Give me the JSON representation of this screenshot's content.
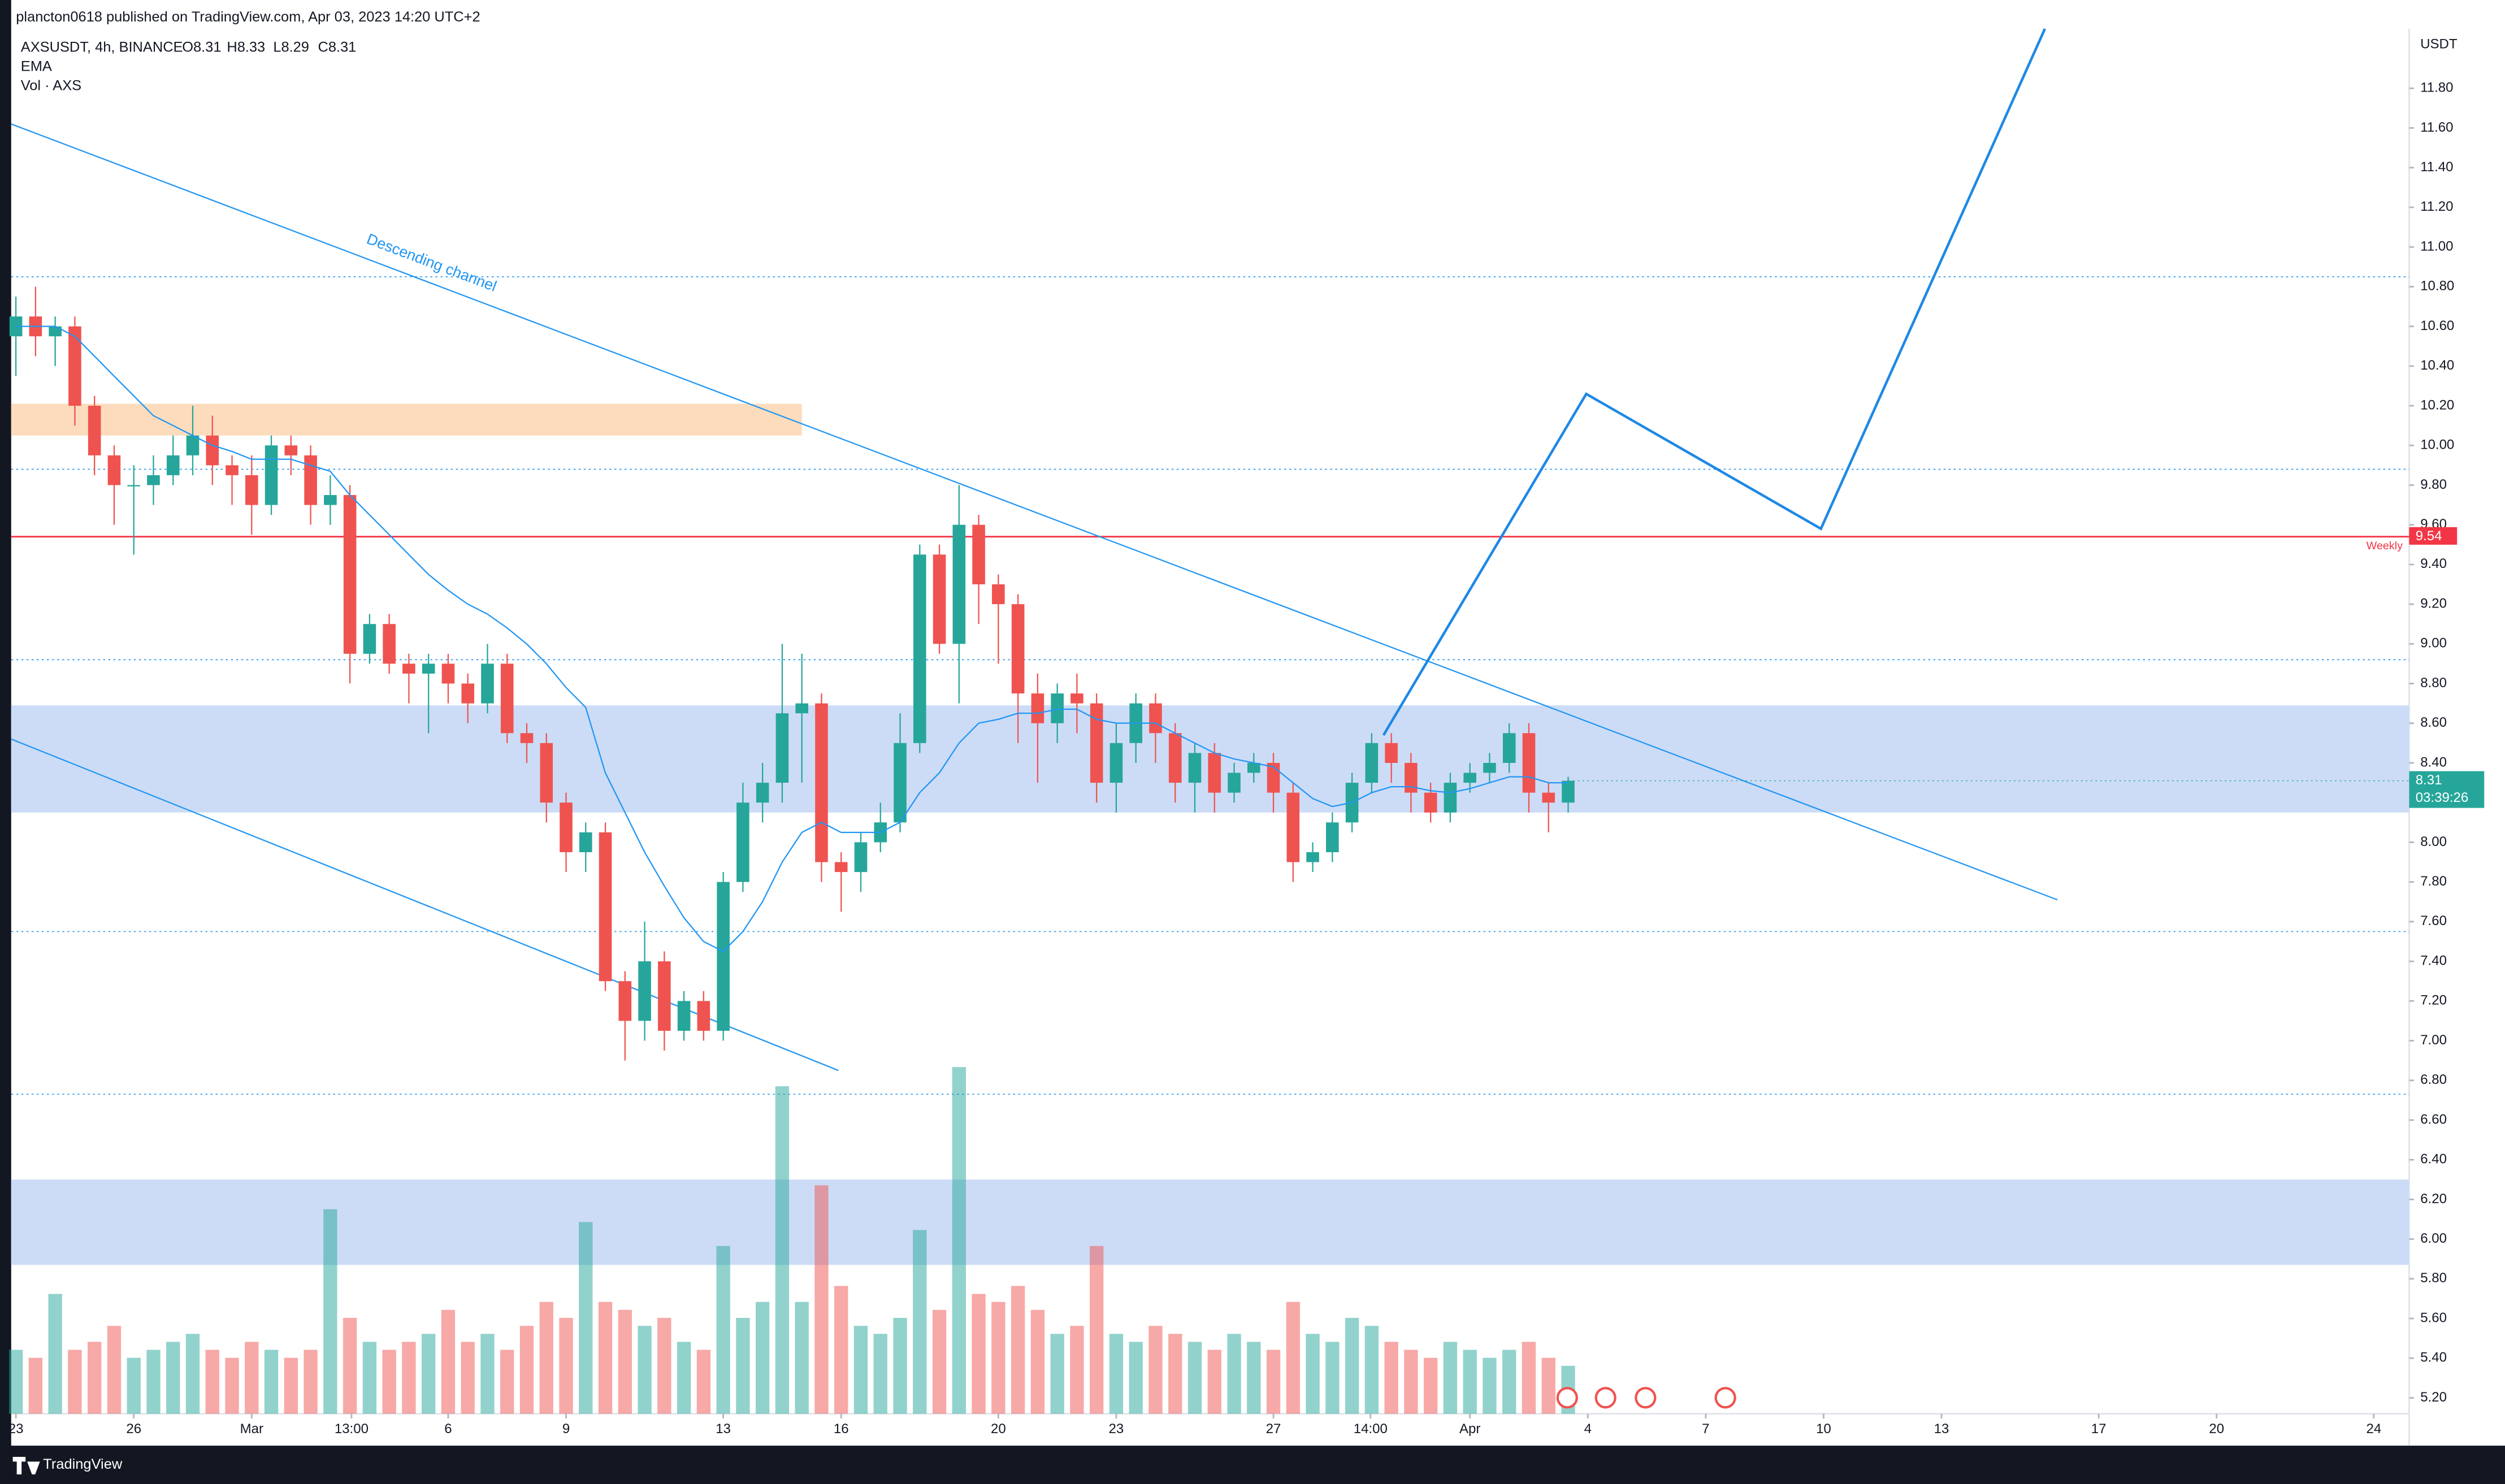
{
  "header": {
    "publisher": "plancton0618 published on TradingView.com, Apr 03, 2023 14:20 UTC+2",
    "symbol": "AXSUSDT, 4h, BINANCE",
    "ohlc": [
      "O8.31",
      "H8.33",
      "L8.29",
      "C8.31"
    ]
  },
  "footer": {
    "brand": "TradingView"
  },
  "chart_data": {
    "type": "candlestick",
    "currency": "USDT",
    "up_color": "#26a69a",
    "down_color": "#ef5350",
    "xlim": [
      -0.12,
      60.9
    ],
    "ylim": [
      5.12,
      12.1
    ],
    "xticks": [
      {
        "value": 0,
        "label": "23"
      },
      {
        "value": 3,
        "label": "26"
      },
      {
        "value": 6,
        "label": "Mar"
      },
      {
        "value": 8.54,
        "label": "13:00"
      },
      {
        "value": 11,
        "label": "6"
      },
      {
        "value": 14,
        "label": "9"
      },
      {
        "value": 18,
        "label": "13"
      },
      {
        "value": 21,
        "label": "16"
      },
      {
        "value": 25,
        "label": "20"
      },
      {
        "value": 28,
        "label": "23"
      },
      {
        "value": 32,
        "label": "27"
      },
      {
        "value": 34.47,
        "label": "14:00"
      },
      {
        "value": 37,
        "label": "Apr"
      },
      {
        "value": 40,
        "label": "4"
      },
      {
        "value": 43,
        "label": "7"
      },
      {
        "value": 46,
        "label": "10"
      },
      {
        "value": 49,
        "label": "13"
      },
      {
        "value": 53,
        "label": "17"
      },
      {
        "value": 56,
        "label": "20"
      },
      {
        "value": 60,
        "label": "24"
      }
    ],
    "yticks": [
      {
        "value": 5.2,
        "label": "5.20"
      },
      {
        "value": 5.4,
        "label": "5.40"
      },
      {
        "value": 5.6,
        "label": "5.60"
      },
      {
        "value": 5.8,
        "label": "5.80"
      },
      {
        "value": 6,
        "label": "6.00"
      },
      {
        "value": 6.2,
        "label": "6.20"
      },
      {
        "value": 6.4,
        "label": "6.40"
      },
      {
        "value": 6.6,
        "label": "6.60"
      },
      {
        "value": 6.8,
        "label": "6.80"
      },
      {
        "value": 7,
        "label": "7.00"
      },
      {
        "value": 7.2,
        "label": "7.20"
      },
      {
        "value": 7.4,
        "label": "7.40"
      },
      {
        "value": 7.6,
        "label": "7.60"
      },
      {
        "value": 7.8,
        "label": "7.80"
      },
      {
        "value": 8,
        "label": "8.00"
      },
      {
        "value": 8.4,
        "label": "8.40"
      },
      {
        "value": 8.6,
        "label": "8.60"
      },
      {
        "value": 8.8,
        "label": "8.80"
      },
      {
        "value": 9,
        "label": "9.00"
      },
      {
        "value": 9.2,
        "label": "9.20"
      },
      {
        "value": 9.4,
        "label": "9.40"
      },
      {
        "value": 9.6,
        "label": "9.60"
      },
      {
        "value": 9.8,
        "label": "9.80"
      },
      {
        "value": 10,
        "label": "10.00"
      },
      {
        "value": 10.2,
        "label": "10.20"
      },
      {
        "value": 10.4,
        "label": "10.40"
      },
      {
        "value": 10.6,
        "label": "10.60"
      },
      {
        "value": 10.8,
        "label": "10.80"
      },
      {
        "value": 11,
        "label": "11.00"
      },
      {
        "value": 11.2,
        "label": "11.20"
      },
      {
        "value": 11.4,
        "label": "11.40"
      },
      {
        "value": 11.6,
        "label": "11.60"
      },
      {
        "value": 11.8,
        "label": "11.80"
      }
    ],
    "x": [
      0,
      0.5,
      1,
      1.5,
      2,
      2.5,
      3,
      3.5,
      4,
      4.5,
      5,
      5.5,
      6,
      6.5,
      7,
      7.5,
      8,
      8.5,
      9,
      9.5,
      10,
      10.5,
      11,
      11.5,
      12,
      12.5,
      13,
      13.5,
      14,
      14.5,
      15,
      15.5,
      16,
      16.5,
      17,
      17.5,
      18,
      18.5,
      19,
      19.5,
      20,
      20.5,
      21,
      21.5,
      22,
      22.5,
      23,
      23.5,
      24,
      24.5,
      25,
      25.5,
      26,
      26.5,
      27,
      27.5,
      28,
      28.5,
      29,
      29.5,
      30,
      30.5,
      31,
      31.5,
      32,
      32.5,
      33,
      33.5,
      34,
      34.5,
      35,
      35.5,
      36,
      36.5,
      37,
      37.5,
      38,
      38.5,
      39,
      39.5
    ],
    "open": [
      10.55,
      10.65,
      10.55,
      10.6,
      10.2,
      9.95,
      9.8,
      9.8,
      9.85,
      9.95,
      10.05,
      9.9,
      9.85,
      9.7,
      10.0,
      9.95,
      9.7,
      9.75,
      8.95,
      9.1,
      8.9,
      8.85,
      8.9,
      8.8,
      8.7,
      8.9,
      8.55,
      8.5,
      8.2,
      7.95,
      8.05,
      7.3,
      7.1,
      7.4,
      7.05,
      7.2,
      7.05,
      7.8,
      8.2,
      8.3,
      8.65,
      8.7,
      7.9,
      7.85,
      8.0,
      8.1,
      8.5,
      9.45,
      9.0,
      9.6,
      9.3,
      9.2,
      8.75,
      8.6,
      8.75,
      8.7,
      8.3,
      8.5,
      8.7,
      8.55,
      8.3,
      8.45,
      8.25,
      8.35,
      8.4,
      8.25,
      7.9,
      7.95,
      8.1,
      8.3,
      8.5,
      8.4,
      8.25,
      8.15,
      8.3,
      8.35,
      8.4,
      8.55,
      8.25,
      8.2
    ],
    "high": [
      10.75,
      10.8,
      10.65,
      10.65,
      10.25,
      10.0,
      9.9,
      9.95,
      10.05,
      10.2,
      10.15,
      9.95,
      9.95,
      10.05,
      10.05,
      10.0,
      9.85,
      9.8,
      9.15,
      9.15,
      8.95,
      8.95,
      8.95,
      8.85,
      9.0,
      8.95,
      8.6,
      8.55,
      8.25,
      8.1,
      8.1,
      7.35,
      7.6,
      7.45,
      7.25,
      7.25,
      7.85,
      8.3,
      8.4,
      9.0,
      8.95,
      8.75,
      7.95,
      8.05,
      8.2,
      8.65,
      9.5,
      9.5,
      9.8,
      9.65,
      9.35,
      9.25,
      8.85,
      8.8,
      8.85,
      8.75,
      8.6,
      8.75,
      8.75,
      8.6,
      8.5,
      8.5,
      8.4,
      8.45,
      8.45,
      8.3,
      8.0,
      8.15,
      8.35,
      8.55,
      8.55,
      8.45,
      8.3,
      8.35,
      8.4,
      8.45,
      8.6,
      8.6,
      8.3,
      8.33
    ],
    "low": [
      10.35,
      10.45,
      10.4,
      10.1,
      9.85,
      9.6,
      9.45,
      9.7,
      9.8,
      9.85,
      9.8,
      9.7,
      9.55,
      9.65,
      9.85,
      9.6,
      9.6,
      8.8,
      8.9,
      8.85,
      8.7,
      8.55,
      8.7,
      8.6,
      8.65,
      8.5,
      8.4,
      8.1,
      7.85,
      7.85,
      7.25,
      6.9,
      7.0,
      6.95,
      7.0,
      7.0,
      7.0,
      7.75,
      8.1,
      8.2,
      8.3,
      7.8,
      7.65,
      7.75,
      7.95,
      8.05,
      8.45,
      8.95,
      8.7,
      9.1,
      8.9,
      8.5,
      8.3,
      8.5,
      8.55,
      8.2,
      8.15,
      8.4,
      8.4,
      8.2,
      8.15,
      8.15,
      8.2,
      8.3,
      8.15,
      7.8,
      7.85,
      7.9,
      8.05,
      8.25,
      8.3,
      8.15,
      8.1,
      8.1,
      8.25,
      8.3,
      8.35,
      8.15,
      8.05,
      8.15
    ],
    "close": [
      10.65,
      10.55,
      10.6,
      10.2,
      9.95,
      9.8,
      9.8,
      9.85,
      9.95,
      10.05,
      9.9,
      9.85,
      9.7,
      10.0,
      9.95,
      9.7,
      9.75,
      8.95,
      9.1,
      8.9,
      8.85,
      8.9,
      8.8,
      8.7,
      8.9,
      8.55,
      8.5,
      8.2,
      7.95,
      8.05,
      7.3,
      7.1,
      7.4,
      7.05,
      7.2,
      7.05,
      7.8,
      8.2,
      8.3,
      8.65,
      8.7,
      7.9,
      7.85,
      8.0,
      8.1,
      8.5,
      9.45,
      9.0,
      9.6,
      9.3,
      9.2,
      8.75,
      8.6,
      8.75,
      8.7,
      8.3,
      8.5,
      8.7,
      8.55,
      8.3,
      8.45,
      8.25,
      8.35,
      8.4,
      8.25,
      7.9,
      7.95,
      8.1,
      8.3,
      8.5,
      8.4,
      8.25,
      8.15,
      8.3,
      8.35,
      8.4,
      8.55,
      8.25,
      8.2,
      8.31
    ],
    "ema": {
      "name": "EMA",
      "color": "#2196f3",
      "values": [
        10.6,
        10.6,
        10.6,
        10.55,
        10.45,
        10.35,
        10.25,
        10.15,
        10.1,
        10.05,
        10.0,
        9.97,
        9.93,
        9.93,
        9.93,
        9.9,
        9.87,
        9.75,
        9.65,
        9.55,
        9.45,
        9.35,
        9.27,
        9.2,
        9.15,
        9.08,
        9.0,
        8.9,
        8.78,
        8.68,
        8.35,
        8.15,
        7.95,
        7.78,
        7.62,
        7.5,
        7.45,
        7.55,
        7.7,
        7.9,
        8.05,
        8.1,
        8.05,
        8.05,
        8.05,
        8.1,
        8.25,
        8.35,
        8.5,
        8.6,
        8.62,
        8.65,
        8.65,
        8.67,
        8.67,
        8.62,
        8.6,
        8.6,
        8.6,
        8.55,
        8.5,
        8.45,
        8.42,
        8.4,
        8.38,
        8.3,
        8.22,
        8.18,
        8.2,
        8.25,
        8.28,
        8.28,
        8.26,
        8.25,
        8.27,
        8.3,
        8.33,
        8.33,
        8.3,
        8.3
      ]
    },
    "volume": {
      "name": "Vol · AXS",
      "values": [
        40,
        35,
        75,
        40,
        45,
        55,
        35,
        40,
        45,
        50,
        40,
        35,
        45,
        40,
        35,
        40,
        128,
        60,
        45,
        40,
        45,
        50,
        65,
        45,
        50,
        40,
        55,
        70,
        60,
        120,
        70,
        65,
        55,
        60,
        45,
        40,
        105,
        60,
        70,
        205,
        70,
        143,
        80,
        55,
        50,
        60,
        115,
        65,
        217,
        75,
        70,
        80,
        65,
        50,
        55,
        105,
        50,
        45,
        55,
        50,
        45,
        40,
        50,
        45,
        40,
        70,
        50,
        45,
        60,
        55,
        45,
        40,
        35,
        45,
        40,
        35,
        40,
        45,
        35,
        30
      ]
    },
    "last_price": 8.31,
    "countdown": "03:39:26",
    "levels": [
      {
        "name": "Weekly",
        "value": 9.54,
        "color": "#f23645"
      }
    ],
    "dotted_levels": [
      10.85,
      9.88,
      8.92,
      7.55,
      6.73
    ],
    "zones": [
      {
        "x": [
          -0.12,
          20.0
        ],
        "y": [
          10.05,
          10.21
        ],
        "color": "#fcdcbd"
      },
      {
        "y": [
          8.15,
          8.69
        ],
        "color": "#ccdcf7"
      },
      {
        "y": [
          5.87,
          6.3
        ],
        "color": "#ccdcf7"
      }
    ],
    "trendlines": [
      {
        "label": "Descending channel",
        "x": [
          -0.12,
          51.95
        ],
        "y": [
          11.62,
          7.71
        ]
      },
      {
        "x": [
          -0.12,
          20.93
        ],
        "y": [
          8.52,
          6.85
        ]
      }
    ],
    "trend_color": "#2196f3",
    "projection": {
      "x": [
        34.8,
        39.96,
        45.93,
        51.63
      ],
      "y": [
        8.54,
        10.26,
        9.58,
        12.1
      ],
      "color": "#1e88e5"
    }
  }
}
